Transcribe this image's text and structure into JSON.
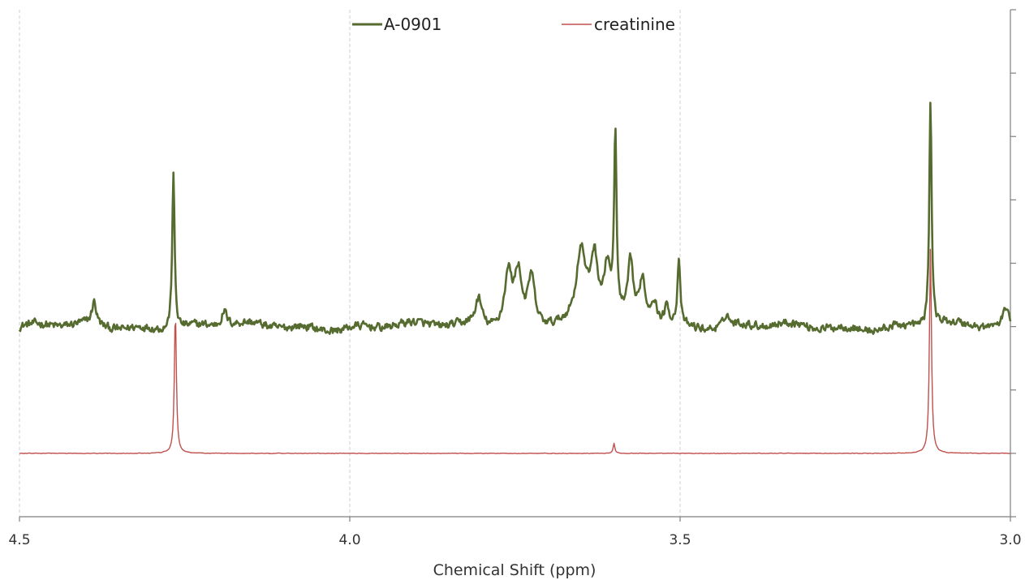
{
  "chart_data": {
    "type": "line",
    "title": "",
    "xlabel": "Chemical Shift (ppm)",
    "ylabel": "",
    "x_reversed": true,
    "xlim": [
      4.5,
      3.0
    ],
    "x_ticks": [
      "4.5",
      "4.0",
      "3.5",
      "3.0"
    ],
    "ylim": [
      -0.5,
      3.5
    ],
    "y_tick_values": [
      -0.5,
      0.0,
      0.5,
      1.0,
      1.5,
      2.0,
      2.5,
      3.0,
      3.5
    ],
    "y_tick_labels_shown": false,
    "grid": "vertical dashed at x ticks",
    "legend_position": "top-center",
    "series": [
      {
        "name": "A-0901",
        "color": "#556b2f",
        "baseline": 1.0,
        "noise": 0.03,
        "peaks": [
          {
            "x": 4.387,
            "height": 0.18,
            "width": 0.004
          },
          {
            "x": 4.267,
            "height": 1.23,
            "width": 0.0022
          },
          {
            "x": 4.19,
            "height": 0.12,
            "width": 0.005
          },
          {
            "x": 3.805,
            "height": 0.22,
            "width": 0.006
          },
          {
            "x": 3.76,
            "height": 0.42,
            "width": 0.007
          },
          {
            "x": 3.745,
            "height": 0.4,
            "width": 0.006
          },
          {
            "x": 3.725,
            "height": 0.38,
            "width": 0.006
          },
          {
            "x": 3.65,
            "height": 0.55,
            "width": 0.008
          },
          {
            "x": 3.63,
            "height": 0.5,
            "width": 0.007
          },
          {
            "x": 3.61,
            "height": 0.42,
            "width": 0.006
          },
          {
            "x": 3.598,
            "height": 1.42,
            "width": 0.0022
          },
          {
            "x": 3.575,
            "height": 0.45,
            "width": 0.005
          },
          {
            "x": 3.557,
            "height": 0.35,
            "width": 0.005
          },
          {
            "x": 3.54,
            "height": 0.2,
            "width": 0.006
          },
          {
            "x": 3.52,
            "height": 0.15,
            "width": 0.005
          },
          {
            "x": 3.502,
            "height": 0.52,
            "width": 0.0025
          },
          {
            "x": 3.43,
            "height": 0.1,
            "width": 0.004
          },
          {
            "x": 3.121,
            "height": 1.75,
            "width": 0.0022
          },
          {
            "x": 3.006,
            "height": 0.15,
            "width": 0.005
          }
        ]
      },
      {
        "name": "creatinine",
        "color": "#c0504d",
        "baseline": 0.0,
        "noise": 0.002,
        "peaks": [
          {
            "x": 4.264,
            "height": 1.12,
            "width": 0.0018
          },
          {
            "x": 3.6,
            "height": 0.08,
            "width": 0.0015
          },
          {
            "x": 3.121,
            "height": 1.62,
            "width": 0.0018
          }
        ]
      }
    ]
  }
}
